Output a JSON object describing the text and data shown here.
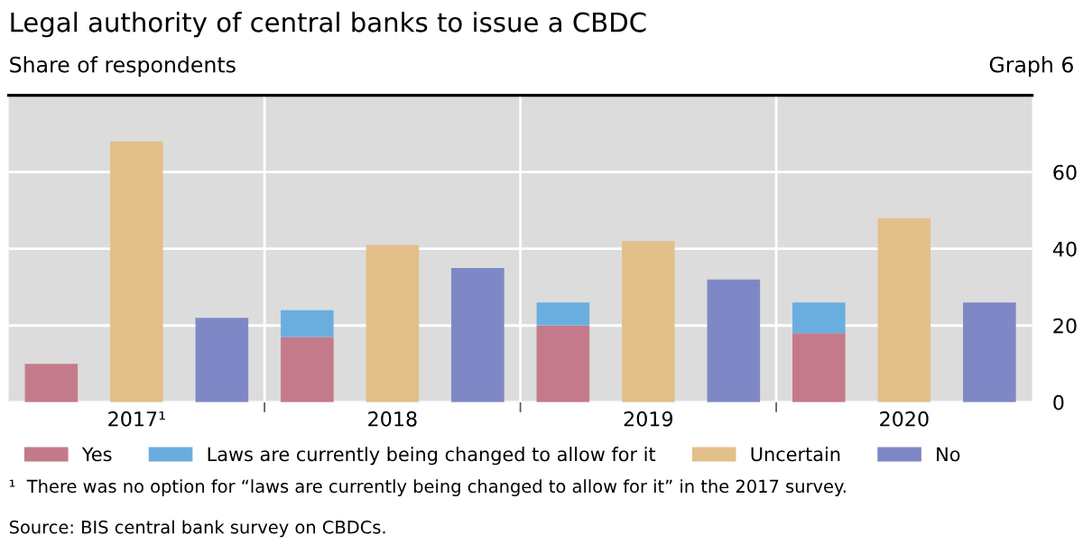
{
  "chart_data": {
    "type": "bar",
    "title": "Legal authority of central banks to issue a CBDC",
    "subtitle": "Share of respondents",
    "categories": [
      null,
      "2017¹",
      null,
      null,
      "2018",
      null,
      null,
      "2019",
      null,
      null,
      "2020",
      null
    ],
    "stacked": true,
    "series": [
      {
        "name": "Yes",
        "color": "#c47a8a",
        "values": [
          10,
          null,
          null,
          17,
          null,
          null,
          20,
          null,
          null,
          18,
          null,
          null
        ]
      },
      {
        "name": "Laws are currently being changed to allow for it",
        "color": "#6aaee0",
        "values": [
          null,
          null,
          null,
          7,
          null,
          null,
          6,
          null,
          null,
          8,
          null,
          null
        ]
      },
      {
        "name": "Uncertain",
        "color": "#e3c08a",
        "values": [
          null,
          68,
          null,
          null,
          41,
          null,
          null,
          42,
          null,
          null,
          48,
          null
        ]
      },
      {
        "name": "No",
        "color": "#7f88c6",
        "values": [
          null,
          null,
          22,
          null,
          null,
          35,
          null,
          null,
          32,
          null,
          null,
          26
        ]
      }
    ],
    "ylim": [
      0,
      80
    ],
    "yticks": [
      0,
      20,
      40,
      60
    ],
    "grid": true,
    "legend": "bottom",
    "annotations": [
      "Graph 6",
      "¹  There was no option for “laws are currently being changed to allow for it” in the 2017 survey.",
      "Source: BIS central bank survey on CBDCs."
    ]
  }
}
